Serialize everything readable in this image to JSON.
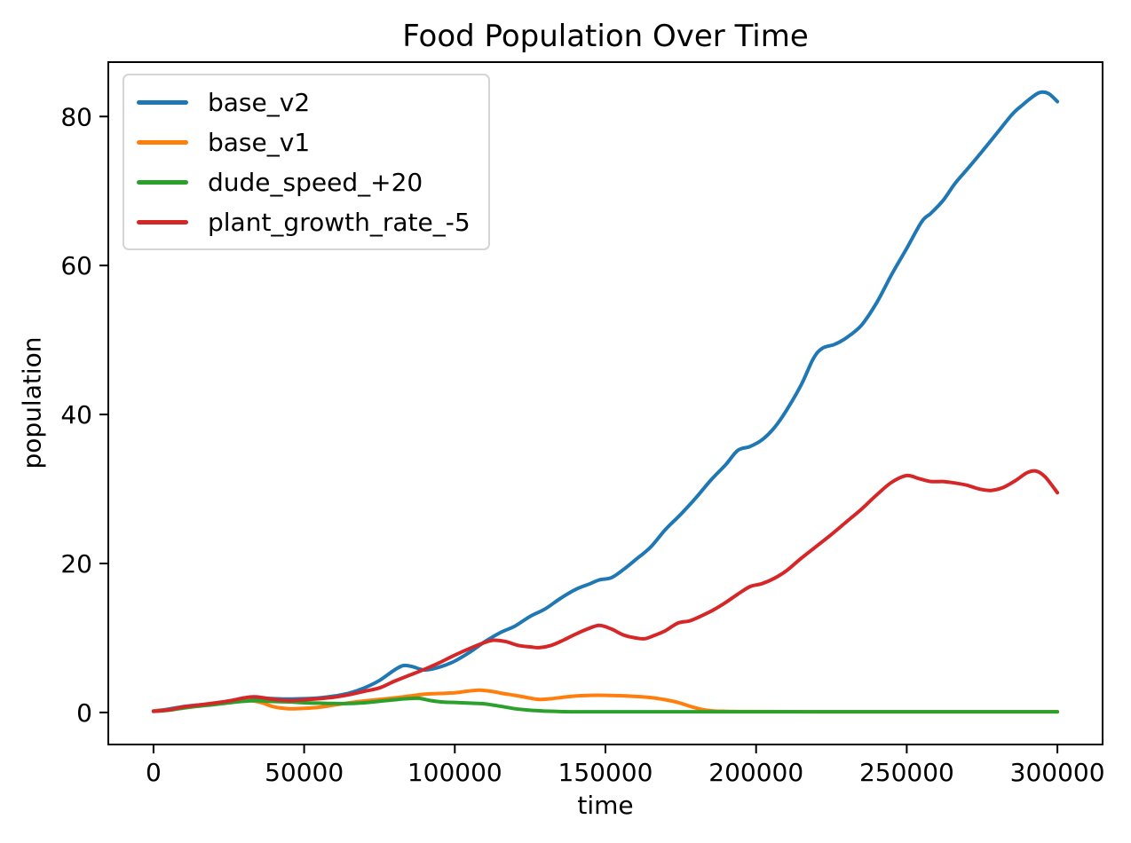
{
  "figure": {
    "background": "#ffffff",
    "text_color": "#000000",
    "spine_color": "#000000"
  },
  "chart_data": {
    "type": "line",
    "title": "Food Population Over Time",
    "xlabel": "time",
    "ylabel": "population",
    "xlim": [
      -15000,
      315000
    ],
    "ylim": [
      -4.3,
      87.3
    ],
    "grid": false,
    "legend_position": "upper left",
    "xticks": {
      "values": [
        0,
        50000,
        100000,
        150000,
        200000,
        250000,
        300000
      ],
      "labels": [
        "0",
        "50000",
        "100000",
        "150000",
        "200000",
        "250000",
        "300000"
      ]
    },
    "yticks": {
      "values": [
        0,
        20,
        40,
        60,
        80
      ],
      "labels": [
        "0",
        "20",
        "40",
        "60",
        "80"
      ]
    },
    "series": [
      {
        "name": "base_v2",
        "color": "#1f77b4",
        "points": [
          [
            0,
            0.2
          ],
          [
            5000,
            0.45
          ],
          [
            10000,
            0.8
          ],
          [
            15000,
            1.0
          ],
          [
            20000,
            1.2
          ],
          [
            25000,
            1.45
          ],
          [
            30000,
            1.7
          ],
          [
            35000,
            1.9
          ],
          [
            40000,
            1.85
          ],
          [
            45000,
            1.8
          ],
          [
            50000,
            1.85
          ],
          [
            55000,
            1.95
          ],
          [
            60000,
            2.2
          ],
          [
            65000,
            2.6
          ],
          [
            70000,
            3.3
          ],
          [
            75000,
            4.3
          ],
          [
            80000,
            5.7
          ],
          [
            83000,
            6.3
          ],
          [
            86000,
            6.15
          ],
          [
            90000,
            5.7
          ],
          [
            95000,
            6.1
          ],
          [
            100000,
            6.9
          ],
          [
            105000,
            8.1
          ],
          [
            110000,
            9.5
          ],
          [
            115000,
            10.7
          ],
          [
            120000,
            11.6
          ],
          [
            125000,
            12.9
          ],
          [
            130000,
            13.9
          ],
          [
            135000,
            15.3
          ],
          [
            140000,
            16.5
          ],
          [
            145000,
            17.3
          ],
          [
            148000,
            17.8
          ],
          [
            152000,
            18.1
          ],
          [
            156000,
            19.2
          ],
          [
            160000,
            20.5
          ],
          [
            165000,
            22.2
          ],
          [
            170000,
            24.6
          ],
          [
            175000,
            26.6
          ],
          [
            180000,
            28.8
          ],
          [
            185000,
            31.2
          ],
          [
            190000,
            33.3
          ],
          [
            194000,
            35.2
          ],
          [
            198000,
            35.7
          ],
          [
            202000,
            36.6
          ],
          [
            206000,
            38.2
          ],
          [
            210000,
            40.5
          ],
          [
            215000,
            44.0
          ],
          [
            219000,
            47.5
          ],
          [
            222000,
            48.9
          ],
          [
            226000,
            49.4
          ],
          [
            230000,
            50.3
          ],
          [
            235000,
            52.0
          ],
          [
            240000,
            55.0
          ],
          [
            245000,
            58.8
          ],
          [
            250000,
            62.3
          ],
          [
            255000,
            65.9
          ],
          [
            258000,
            67.0
          ],
          [
            262000,
            68.7
          ],
          [
            266000,
            71.0
          ],
          [
            270000,
            72.9
          ],
          [
            275000,
            75.3
          ],
          [
            280000,
            77.8
          ],
          [
            285000,
            80.3
          ],
          [
            288000,
            81.4
          ],
          [
            291000,
            82.4
          ],
          [
            294000,
            83.2
          ],
          [
            297000,
            83.1
          ],
          [
            300000,
            82.0
          ]
        ]
      },
      {
        "name": "base_v1",
        "color": "#ff7f0e",
        "points": [
          [
            0,
            0.2
          ],
          [
            5000,
            0.35
          ],
          [
            10000,
            0.7
          ],
          [
            15000,
            0.9
          ],
          [
            20000,
            1.1
          ],
          [
            25000,
            1.35
          ],
          [
            30000,
            1.6
          ],
          [
            33000,
            1.55
          ],
          [
            36000,
            1.3
          ],
          [
            40000,
            0.75
          ],
          [
            45000,
            0.5
          ],
          [
            50000,
            0.55
          ],
          [
            55000,
            0.7
          ],
          [
            60000,
            1.0
          ],
          [
            65000,
            1.3
          ],
          [
            70000,
            1.55
          ],
          [
            75000,
            1.75
          ],
          [
            80000,
            1.95
          ],
          [
            85000,
            2.2
          ],
          [
            90000,
            2.45
          ],
          [
            95000,
            2.55
          ],
          [
            100000,
            2.65
          ],
          [
            104000,
            2.85
          ],
          [
            108000,
            3.0
          ],
          [
            112000,
            2.85
          ],
          [
            116000,
            2.55
          ],
          [
            120000,
            2.3
          ],
          [
            124000,
            2.0
          ],
          [
            128000,
            1.75
          ],
          [
            132000,
            1.85
          ],
          [
            136000,
            2.05
          ],
          [
            140000,
            2.2
          ],
          [
            145000,
            2.3
          ],
          [
            150000,
            2.3
          ],
          [
            155000,
            2.25
          ],
          [
            160000,
            2.15
          ],
          [
            165000,
            2.0
          ],
          [
            170000,
            1.7
          ],
          [
            174000,
            1.35
          ],
          [
            178000,
            0.85
          ],
          [
            182000,
            0.4
          ],
          [
            186000,
            0.2
          ],
          [
            190000,
            0.15
          ],
          [
            200000,
            0.12
          ],
          [
            220000,
            0.1
          ],
          [
            240000,
            0.1
          ],
          [
            260000,
            0.1
          ],
          [
            280000,
            0.1
          ],
          [
            300000,
            0.1
          ]
        ]
      },
      {
        "name": "dude_speed_+20",
        "color": "#2ca02c",
        "points": [
          [
            0,
            0.15
          ],
          [
            5000,
            0.3
          ],
          [
            10000,
            0.6
          ],
          [
            15000,
            0.85
          ],
          [
            20000,
            1.05
          ],
          [
            25000,
            1.3
          ],
          [
            30000,
            1.5
          ],
          [
            34000,
            1.6
          ],
          [
            38000,
            1.5
          ],
          [
            42000,
            1.45
          ],
          [
            46000,
            1.4
          ],
          [
            50000,
            1.3
          ],
          [
            55000,
            1.25
          ],
          [
            60000,
            1.2
          ],
          [
            65000,
            1.2
          ],
          [
            70000,
            1.3
          ],
          [
            75000,
            1.5
          ],
          [
            80000,
            1.7
          ],
          [
            84000,
            1.85
          ],
          [
            88000,
            1.9
          ],
          [
            92000,
            1.6
          ],
          [
            96000,
            1.4
          ],
          [
            100000,
            1.35
          ],
          [
            105000,
            1.25
          ],
          [
            110000,
            1.15
          ],
          [
            115000,
            0.85
          ],
          [
            120000,
            0.5
          ],
          [
            125000,
            0.3
          ],
          [
            130000,
            0.18
          ],
          [
            135000,
            0.12
          ],
          [
            140000,
            0.1
          ],
          [
            160000,
            0.1
          ],
          [
            180000,
            0.1
          ],
          [
            200000,
            0.1
          ],
          [
            220000,
            0.1
          ],
          [
            240000,
            0.1
          ],
          [
            260000,
            0.1
          ],
          [
            280000,
            0.1
          ],
          [
            300000,
            0.1
          ]
        ]
      },
      {
        "name": "plant_growth_rate_-5",
        "color": "#d62728",
        "points": [
          [
            0,
            0.15
          ],
          [
            5000,
            0.35
          ],
          [
            10000,
            0.75
          ],
          [
            15000,
            1.0
          ],
          [
            20000,
            1.25
          ],
          [
            25000,
            1.55
          ],
          [
            30000,
            1.95
          ],
          [
            33000,
            2.1
          ],
          [
            36000,
            2.0
          ],
          [
            40000,
            1.75
          ],
          [
            45000,
            1.6
          ],
          [
            50000,
            1.7
          ],
          [
            55000,
            1.85
          ],
          [
            60000,
            2.05
          ],
          [
            65000,
            2.4
          ],
          [
            70000,
            2.85
          ],
          [
            75000,
            3.3
          ],
          [
            80000,
            4.2
          ],
          [
            85000,
            5.0
          ],
          [
            90000,
            5.8
          ],
          [
            95000,
            6.7
          ],
          [
            100000,
            7.7
          ],
          [
            105000,
            8.6
          ],
          [
            110000,
            9.4
          ],
          [
            113000,
            9.7
          ],
          [
            117000,
            9.5
          ],
          [
            121000,
            9.0
          ],
          [
            125000,
            8.8
          ],
          [
            128000,
            8.7
          ],
          [
            132000,
            9.0
          ],
          [
            136000,
            9.7
          ],
          [
            140000,
            10.5
          ],
          [
            144000,
            11.2
          ],
          [
            148000,
            11.7
          ],
          [
            152000,
            11.2
          ],
          [
            156000,
            10.4
          ],
          [
            160000,
            10.0
          ],
          [
            163000,
            9.9
          ],
          [
            166000,
            10.3
          ],
          [
            170000,
            11.0
          ],
          [
            174000,
            12.0
          ],
          [
            178000,
            12.3
          ],
          [
            182000,
            13.0
          ],
          [
            186000,
            13.8
          ],
          [
            190000,
            14.8
          ],
          [
            194000,
            15.9
          ],
          [
            198000,
            16.9
          ],
          [
            202000,
            17.3
          ],
          [
            206000,
            18.0
          ],
          [
            210000,
            19.0
          ],
          [
            215000,
            20.7
          ],
          [
            220000,
            22.3
          ],
          [
            225000,
            23.9
          ],
          [
            230000,
            25.6
          ],
          [
            235000,
            27.3
          ],
          [
            240000,
            29.2
          ],
          [
            245000,
            30.9
          ],
          [
            250000,
            31.8
          ],
          [
            254000,
            31.4
          ],
          [
            258000,
            31.0
          ],
          [
            262000,
            31.0
          ],
          [
            266000,
            30.8
          ],
          [
            270000,
            30.5
          ],
          [
            274000,
            30.0
          ],
          [
            278000,
            29.8
          ],
          [
            282000,
            30.2
          ],
          [
            286000,
            31.1
          ],
          [
            290000,
            32.2
          ],
          [
            293000,
            32.4
          ],
          [
            296000,
            31.6
          ],
          [
            300000,
            29.5
          ]
        ]
      }
    ]
  }
}
